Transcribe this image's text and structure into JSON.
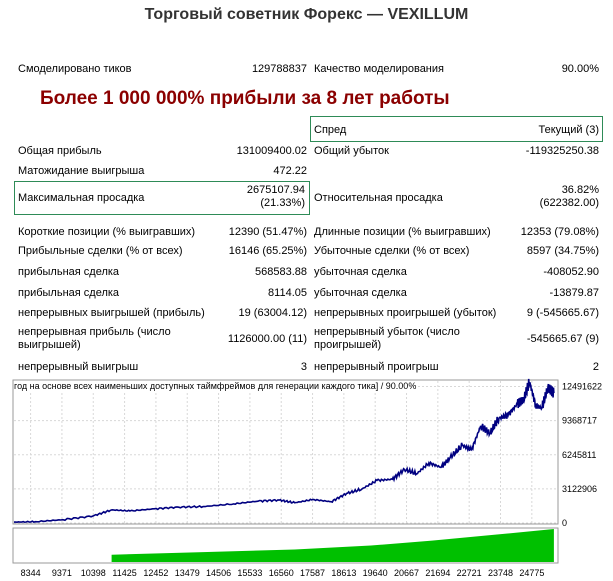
{
  "title": "Торговый советник Форекс — VEXILLUM",
  "headline": "Более 1 000 000% прибыли за 8 лет работы",
  "stats": {
    "ticks": {
      "label": "Смоделировано тиков",
      "value": "129788837"
    },
    "quality": {
      "label": "Качество моделирования",
      "value": "90.00%"
    },
    "spread": {
      "label": "Спред",
      "value": "Текущий (3)"
    },
    "gross_profit": {
      "label": "Общая прибыль",
      "value": "131009400.02"
    },
    "gross_loss": {
      "label": "Общий убыток",
      "value": "-119325250.38"
    },
    "expected_payoff": {
      "label": "Матожидание выигрыша",
      "value": "472.22"
    },
    "max_drawdown": {
      "label": "Максимальная просадка",
      "value1": "2675107.94",
      "value2": "(21.33%)"
    },
    "rel_drawdown": {
      "label": "Относительная просадка",
      "value1": "36.82%",
      "value2": "(622382.00)"
    },
    "short_positions": {
      "label": "Короткие позиции (% выигравших)",
      "value": "12390 (51.47%)"
    },
    "long_positions": {
      "label": "Длинные позиции (% выигравших)",
      "value": "12353 (79.08%)"
    },
    "profit_trades": {
      "label": "Прибыльные сделки (% от всех)",
      "value": "16146 (65.25%)"
    },
    "loss_trades": {
      "label": "Убыточные сделки (% от всех)",
      "value": "8597 (34.75%)"
    },
    "largest_profit": {
      "label": "прибыльная сделка",
      "value": "568583.88"
    },
    "largest_loss": {
      "label": "убыточная сделка",
      "value": "-408052.90"
    },
    "avg_profit": {
      "label": "прибыльная сделка",
      "value": "8114.05"
    },
    "avg_loss": {
      "label": "убыточная сделка",
      "value": "-13879.87"
    },
    "max_cons_wins": {
      "label": "непрерывных выигрышей (прибыль)",
      "value": "19 (63004.12)"
    },
    "max_cons_losses": {
      "label": "непрерывных проигрышей (убыток)",
      "value": "9 (-545665.67)"
    },
    "max_cons_profit": {
      "label1": "непрерывная прибыль (число",
      "label2": "выигрышей)",
      "value": "1126000.00 (11)"
    },
    "max_cons_loss": {
      "label1": "непрерывный убыток (число",
      "label2": "проигрышей)",
      "value": "-545665.67 (9)"
    },
    "avg_cons_wins": {
      "label": "непрерывный выигрыш",
      "value": "3"
    },
    "avg_cons_losses": {
      "label": "непрерывный проигрыш",
      "value": "2"
    }
  },
  "chart_data": {
    "type": "line",
    "title": "год на основе всех наименьших доступных таймфреймов для генерации каждого тика] / 90.00%",
    "y_ticks": [
      "12491622",
      "9368717",
      "6245811",
      "3122906",
      "0"
    ],
    "x_ticks": [
      "8344",
      "9371",
      "10398",
      "11425",
      "12452",
      "13479",
      "14506",
      "15533",
      "16560",
      "17587",
      "18613",
      "19640",
      "20667",
      "21694",
      "22721",
      "23748",
      "24775"
    ],
    "ylim": [
      0,
      13000000
    ],
    "series": [
      {
        "color": "#000080",
        "x": [
          7800,
          8500,
          9400,
          10400,
          11000,
          11600,
          12400,
          13200,
          14000,
          15000,
          15800,
          16500,
          17000,
          17600,
          18200,
          18700,
          19200,
          19700,
          20200,
          20600,
          21000,
          21400,
          21800,
          22100,
          22500,
          22800,
          23100,
          23400,
          23700,
          24000,
          24300,
          24500,
          24700,
          24900,
          25100,
          25300,
          25500
        ],
        "values": [
          80000,
          120000,
          300000,
          650000,
          1200000,
          1100000,
          1300000,
          1450000,
          1500000,
          1750000,
          2000000,
          2100000,
          1850000,
          2150000,
          1950000,
          2700000,
          3100000,
          3900000,
          4000000,
          4900000,
          4500000,
          5500000,
          5100000,
          6000000,
          7100000,
          6700000,
          8900000,
          8200000,
          9600000,
          9900000,
          10900000,
          11200000,
          12900000,
          10800000,
          10500000,
          12300000,
          11900000
        ]
      }
    ],
    "volume_series": {
      "color": "#00c000",
      "x": [
        11000,
        14000,
        17000,
        19500,
        21500,
        23500,
        25500
      ],
      "values": [
        0.22,
        0.3,
        0.38,
        0.5,
        0.65,
        0.82,
        1.0
      ]
    }
  }
}
